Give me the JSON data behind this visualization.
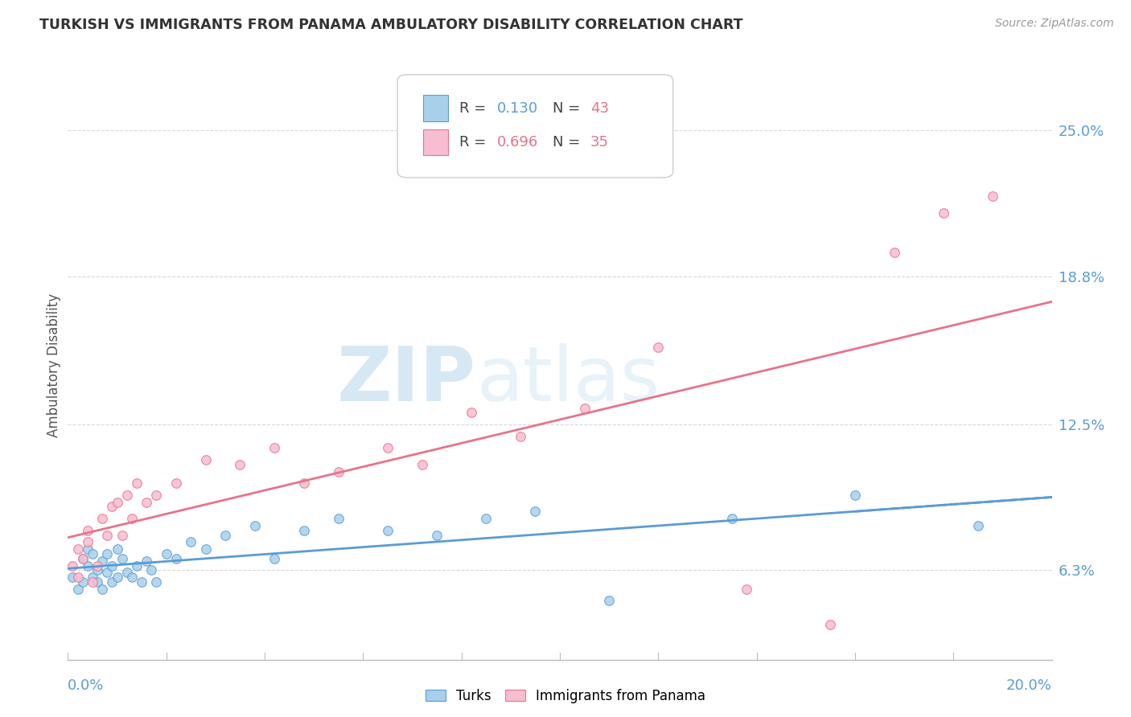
{
  "title": "TURKISH VS IMMIGRANTS FROM PANAMA AMBULATORY DISABILITY CORRELATION CHART",
  "source": "Source: ZipAtlas.com",
  "ylabel": "Ambulatory Disability",
  "ytick_labels": [
    "6.3%",
    "12.5%",
    "18.8%",
    "25.0%"
  ],
  "ytick_values": [
    0.063,
    0.125,
    0.188,
    0.25
  ],
  "xmin": 0.0,
  "xmax": 0.2,
  "ymin": 0.025,
  "ymax": 0.275,
  "legend_r1": "0.130",
  "legend_n1": "43",
  "legend_r2": "0.696",
  "legend_n2": "35",
  "color_turks_fill": "#a8d0ea",
  "color_turks_edge": "#5b9bd5",
  "color_panama_fill": "#f7bdd0",
  "color_panama_edge": "#e8738a",
  "color_turks_line": "#5b9bd5",
  "color_panama_line": "#e8738a",
  "background_color": "#ffffff",
  "grid_color": "#d8d8d8",
  "watermark_zip": "ZIP",
  "watermark_atlas": "atlas",
  "turks_x": [
    0.001,
    0.002,
    0.003,
    0.003,
    0.004,
    0.004,
    0.005,
    0.005,
    0.006,
    0.006,
    0.007,
    0.007,
    0.008,
    0.008,
    0.009,
    0.009,
    0.01,
    0.01,
    0.011,
    0.012,
    0.013,
    0.014,
    0.015,
    0.016,
    0.017,
    0.018,
    0.02,
    0.022,
    0.025,
    0.028,
    0.032,
    0.038,
    0.042,
    0.048,
    0.055,
    0.065,
    0.075,
    0.085,
    0.095,
    0.11,
    0.135,
    0.16,
    0.185
  ],
  "turks_y": [
    0.06,
    0.055,
    0.068,
    0.058,
    0.065,
    0.072,
    0.06,
    0.07,
    0.063,
    0.058,
    0.067,
    0.055,
    0.062,
    0.07,
    0.058,
    0.065,
    0.072,
    0.06,
    0.068,
    0.062,
    0.06,
    0.065,
    0.058,
    0.067,
    0.063,
    0.058,
    0.07,
    0.068,
    0.075,
    0.072,
    0.078,
    0.082,
    0.068,
    0.08,
    0.085,
    0.08,
    0.078,
    0.085,
    0.088,
    0.05,
    0.085,
    0.095,
    0.082
  ],
  "panama_x": [
    0.001,
    0.002,
    0.002,
    0.003,
    0.004,
    0.004,
    0.005,
    0.006,
    0.007,
    0.008,
    0.009,
    0.01,
    0.011,
    0.012,
    0.013,
    0.014,
    0.016,
    0.018,
    0.022,
    0.028,
    0.035,
    0.042,
    0.048,
    0.055,
    0.065,
    0.072,
    0.082,
    0.092,
    0.105,
    0.12,
    0.138,
    0.155,
    0.168,
    0.178,
    0.188
  ],
  "panama_y": [
    0.065,
    0.06,
    0.072,
    0.068,
    0.075,
    0.08,
    0.058,
    0.065,
    0.085,
    0.078,
    0.09,
    0.092,
    0.078,
    0.095,
    0.085,
    0.1,
    0.092,
    0.095,
    0.1,
    0.11,
    0.108,
    0.115,
    0.1,
    0.105,
    0.115,
    0.108,
    0.13,
    0.12,
    0.132,
    0.158,
    0.055,
    0.04,
    0.198,
    0.215,
    0.222
  ]
}
